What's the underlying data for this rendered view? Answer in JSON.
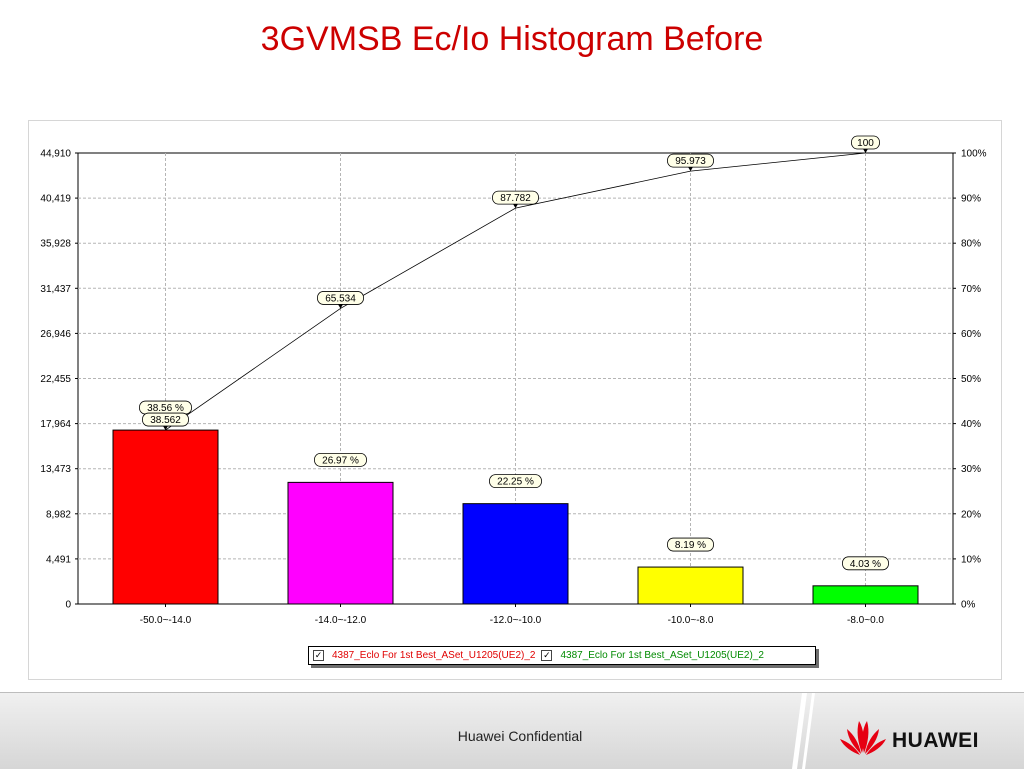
{
  "slide": {
    "title": "3GVMSB Ec/Io Histogram Before",
    "footer": "Huawei Confidential",
    "brand": "HUAWEI"
  },
  "chart_data": {
    "type": "bar",
    "categories": [
      "-50.0~-14.0",
      "-14.0~-12.0",
      "-12.0~-10.0",
      "-10.0~-8.0",
      "-8.0~0.0"
    ],
    "series": [
      {
        "name": "4387_Eclo For 1st Best_ASet_U1205(UE2)_2",
        "kind": "bar",
        "values": [
          17318,
          12112,
          9992,
          3678,
          1810
        ],
        "value_labels": [
          "38.56 %",
          "26.97 %",
          "22.25 %",
          "8.19 %",
          "4.03 %"
        ],
        "colors": [
          "#ff0000",
          "#ff00ff",
          "#0000ff",
          "#ffff00",
          "#00ff00"
        ]
      },
      {
        "name": "4387_Eclo For 1st Best_ASet_U1205(UE2)_2",
        "kind": "line",
        "axis": "right",
        "values": [
          38.562,
          65.534,
          87.782,
          95.973,
          100
        ],
        "value_labels": [
          "38.562",
          "65.534",
          "87.782",
          "95.973",
          "100"
        ]
      }
    ],
    "y_left": {
      "ticks": [
        "0",
        "4,491",
        "8,982",
        "13,473",
        "17,964",
        "22,455",
        "26,946",
        "31,437",
        "35,928",
        "40,419",
        "44,910"
      ],
      "lim": [
        0,
        44910
      ]
    },
    "y_right": {
      "ticks": [
        "0%",
        "10%",
        "20%",
        "30%",
        "40%",
        "50%",
        "60%",
        "70%",
        "80%",
        "90%",
        "100%"
      ],
      "lim": [
        0,
        100
      ]
    },
    "grid": true,
    "legend_position": "bottom"
  },
  "legend": {
    "check_mark": "✓",
    "entries": [
      {
        "label": "4387_Eclo For 1st Best_ASet_U1205(UE2)_2",
        "color": "#e00000"
      },
      {
        "label": "4387_Eclo For 1st Best_ASet_U1205(UE2)_2",
        "color": "#008a00"
      }
    ]
  }
}
